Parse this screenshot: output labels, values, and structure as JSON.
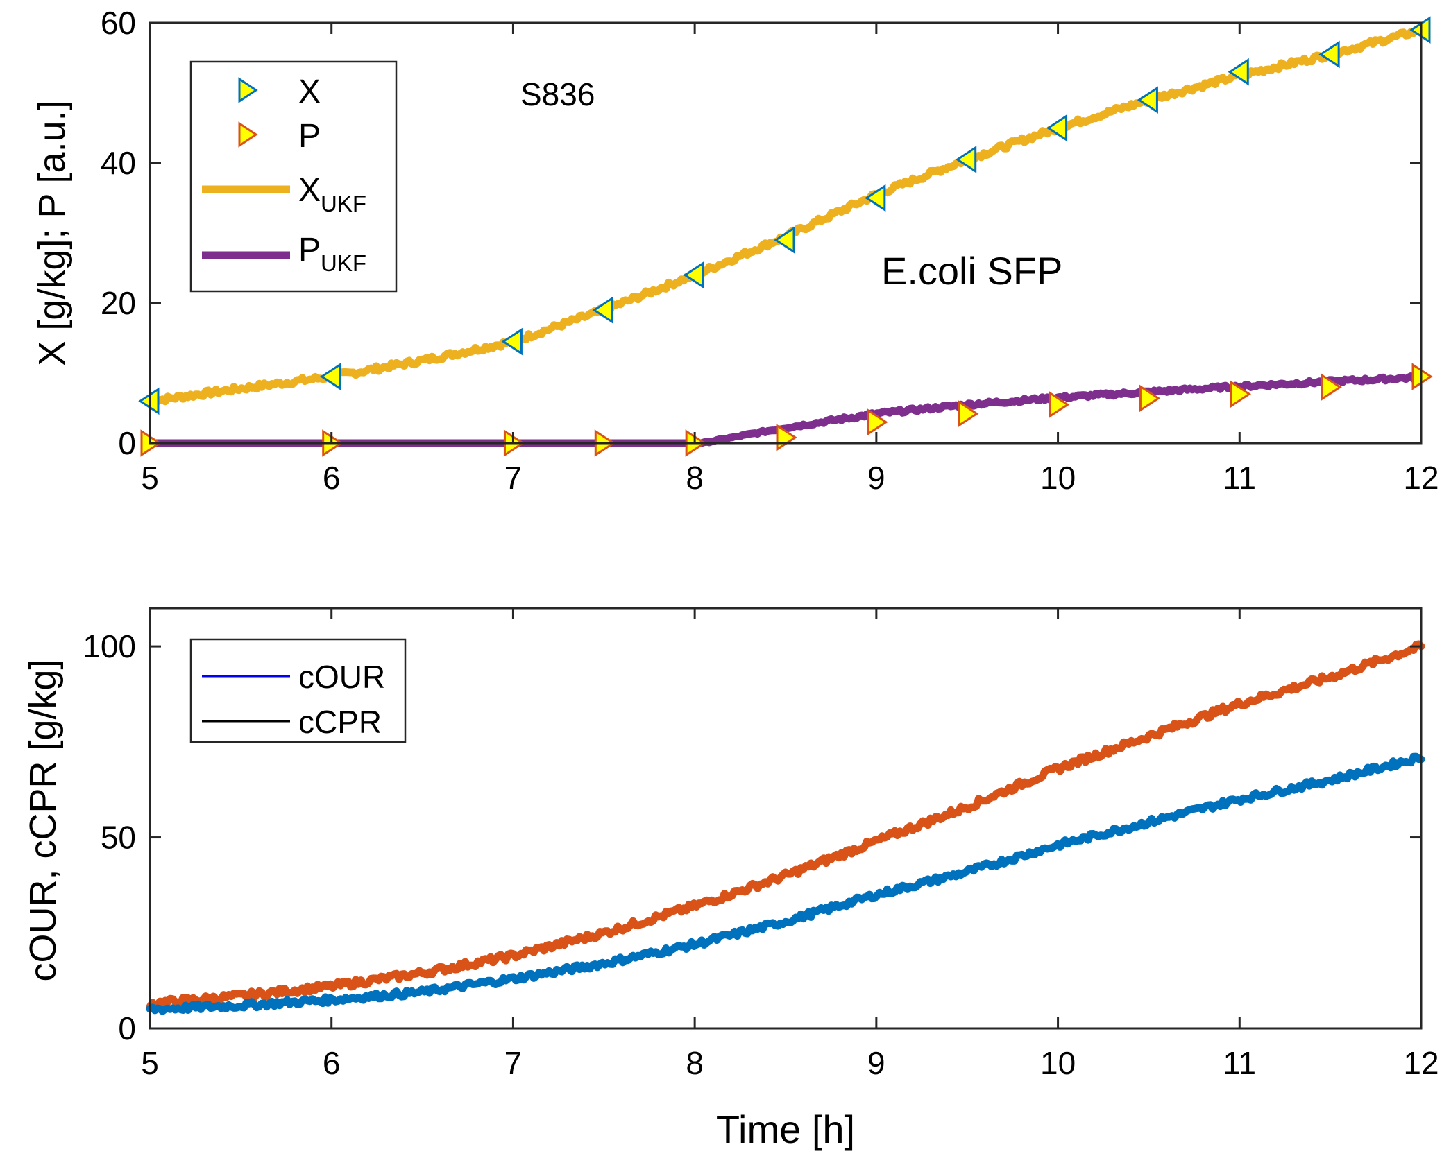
{
  "chart_data": [
    {
      "type": "line",
      "id": "top",
      "annotations": [
        "S836",
        "E.coli SFP"
      ],
      "ylabel": "X [g/kg]; P [a.u.]",
      "xlabel": "",
      "xlim": [
        5,
        12
      ],
      "ylim": [
        0,
        60
      ],
      "xticks": [
        5,
        6,
        7,
        8,
        9,
        10,
        11,
        12
      ],
      "yticks": [
        0,
        20,
        40,
        60
      ],
      "grid": false,
      "legend_position": "top-left",
      "legend": [
        {
          "label": "X",
          "sub": "",
          "kind": "marker-left",
          "color": "#0072BD",
          "fill": "#FFFF00"
        },
        {
          "label": "P",
          "sub": "",
          "kind": "marker-right",
          "color": "#D95319",
          "fill": "#FFFF00"
        },
        {
          "label": "X",
          "sub": "UKF",
          "kind": "line",
          "color": "#EDB120"
        },
        {
          "label": "P",
          "sub": "UKF",
          "kind": "line",
          "color": "#7E2F8E"
        }
      ],
      "series": [
        {
          "name": "X",
          "style": "marker-left",
          "color": "#0072BD",
          "fill": "#FFFF00",
          "x": [
            5,
            6,
            7,
            7.5,
            8,
            8.5,
            9,
            9.5,
            10,
            10.5,
            11,
            11.5,
            12
          ],
          "y": [
            6,
            9.5,
            14.5,
            19,
            24,
            29,
            35,
            40.5,
            45,
            49,
            53,
            55.5,
            59
          ]
        },
        {
          "name": "P",
          "style": "marker-right",
          "color": "#D95319",
          "fill": "#FFFF00",
          "x": [
            5,
            6,
            7,
            7.5,
            8,
            8.5,
            9,
            9.5,
            10,
            10.5,
            11,
            11.5,
            12
          ],
          "y": [
            0,
            0,
            0,
            0,
            0,
            0.8,
            3,
            4.2,
            5.5,
            6.4,
            7,
            8,
            9.5
          ]
        },
        {
          "name": "X_UKF",
          "style": "line",
          "color": "#EDB120",
          "noise": 0.4,
          "x": [
            5,
            5.5,
            6,
            6.5,
            7,
            7.5,
            8,
            8.5,
            9,
            9.5,
            10,
            10.5,
            11,
            11.5,
            12
          ],
          "y": [
            6,
            7.8,
            9.5,
            11.8,
            14.5,
            19,
            24,
            29.5,
            35.5,
            40.5,
            45,
            49,
            52.5,
            55.5,
            59
          ]
        },
        {
          "name": "P_UKF",
          "style": "line",
          "color": "#7E2F8E",
          "noise": 0.25,
          "x": [
            5,
            6,
            7,
            7.5,
            8,
            8.05,
            8.5,
            9,
            9.5,
            10,
            10.5,
            11,
            11.5,
            12
          ],
          "y": [
            0,
            0,
            0,
            0,
            0,
            0.05,
            2.2,
            4.2,
            5.5,
            6.5,
            7.3,
            8.1,
            8.8,
            9.4
          ]
        }
      ]
    },
    {
      "type": "line",
      "id": "bottom",
      "ylabel": "cOUR, cCPR [g/kg]",
      "xlabel": "Time [h]",
      "xlim": [
        5,
        12
      ],
      "ylim": [
        0,
        110
      ],
      "xticks": [
        5,
        6,
        7,
        8,
        9,
        10,
        11,
        12
      ],
      "yticks": [
        0,
        50,
        100
      ],
      "grid": false,
      "legend_position": "top-left",
      "legend": [
        {
          "label": "cOUR",
          "sub": "",
          "kind": "line-thin",
          "color": "#0000FF"
        },
        {
          "label": "cCPR",
          "sub": "",
          "kind": "line-thin",
          "color": "#000000"
        }
      ],
      "series": [
        {
          "name": "cCPR",
          "style": "line",
          "color": "#D95319",
          "noise": 0.9,
          "x": [
            5,
            5.5,
            6,
            6.5,
            7,
            7.5,
            8,
            8.5,
            9,
            9.5,
            10,
            10.5,
            11,
            11.5,
            12
          ],
          "y": [
            6.5,
            8.5,
            11,
            14.5,
            19,
            25,
            32,
            40,
            49,
            58,
            68,
            76.5,
            85,
            92,
            100
          ]
        },
        {
          "name": "cOUR",
          "style": "line",
          "color": "#0072BD",
          "noise": 0.8,
          "x": [
            5,
            5.5,
            6,
            6.5,
            7,
            7.5,
            8,
            8.5,
            9,
            9.5,
            10,
            10.5,
            11,
            11.5,
            12
          ],
          "y": [
            5,
            6,
            7.5,
            9.5,
            13,
            17,
            22,
            28,
            35,
            41,
            48,
            54,
            60,
            65,
            71
          ]
        }
      ]
    }
  ]
}
